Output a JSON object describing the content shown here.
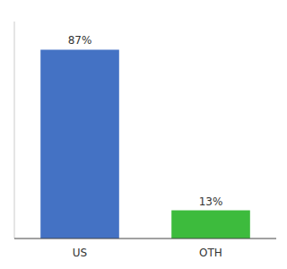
{
  "chart_data": {
    "type": "bar",
    "categories": [
      "US",
      "OTH"
    ],
    "values": [
      87,
      13
    ],
    "value_labels": [
      "87%",
      "13%"
    ],
    "colors": [
      "#4472c4",
      "#3dbb3d"
    ],
    "ylim": [
      0,
      100
    ],
    "data_labels": true,
    "tick_labels": "x",
    "grid": false
  }
}
